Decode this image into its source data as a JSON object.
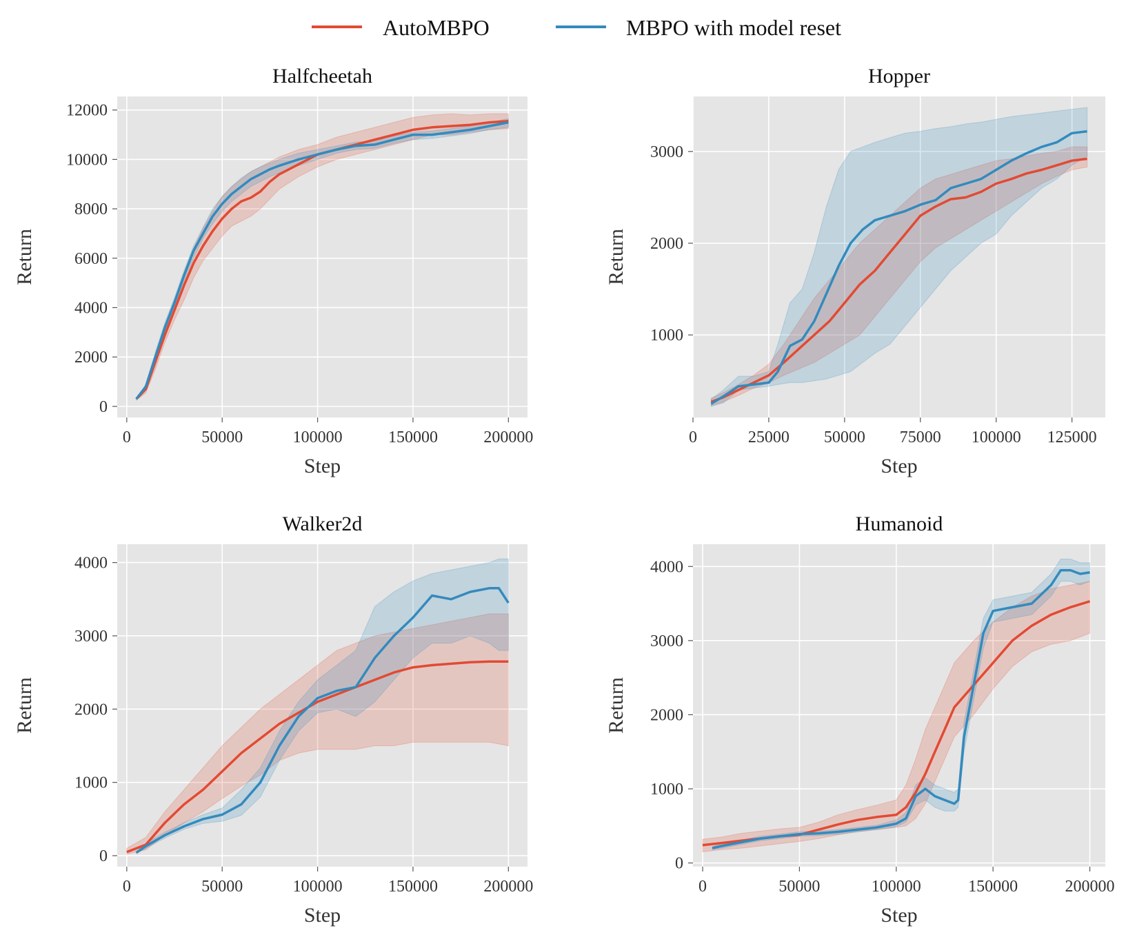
{
  "legend": {
    "placement": "top-center",
    "items": [
      {
        "label": "AutoMBPO",
        "color": "#E24A33"
      },
      {
        "label": "MBPO with model reset",
        "color": "#348ABD"
      }
    ]
  },
  "chart_data": [
    {
      "type": "line",
      "title": "Halfcheetah",
      "xlabel": "Step",
      "ylabel": "Return",
      "xlim": [
        -5000,
        210000
      ],
      "ylim": [
        -450,
        12550
      ],
      "xticks": [
        0,
        50000,
        100000,
        150000,
        200000
      ],
      "yticks": [
        0,
        2000,
        4000,
        6000,
        8000,
        10000,
        12000
      ],
      "grid": true,
      "series": [
        {
          "name": "AutoMBPO",
          "x": [
            5000,
            10000,
            15000,
            20000,
            25000,
            30000,
            35000,
            40000,
            45000,
            50000,
            55000,
            60000,
            65000,
            70000,
            75000,
            80000,
            90000,
            100000,
            110000,
            120000,
            130000,
            140000,
            150000,
            160000,
            170000,
            180000,
            190000,
            200000
          ],
          "y": [
            300,
            700,
            1800,
            2900,
            3900,
            4900,
            5800,
            6500,
            7100,
            7600,
            8000,
            8300,
            8450,
            8700,
            9100,
            9400,
            9800,
            10200,
            10400,
            10600,
            10800,
            11000,
            11200,
            11300,
            11350,
            11400,
            11500,
            11550
          ],
          "lower": [
            250,
            550,
            1500,
            2600,
            3500,
            4300,
            5200,
            5900,
            6400,
            6900,
            7300,
            7500,
            7700,
            8000,
            8400,
            8800,
            9300,
            9700,
            10000,
            10200,
            10400,
            10600,
            10800,
            11000,
            11000,
            11100,
            11200,
            11250
          ],
          "upper": [
            350,
            850,
            2000,
            3200,
            4300,
            5400,
            6400,
            7200,
            7900,
            8500,
            8900,
            9200,
            9500,
            9700,
            9900,
            10100,
            10400,
            10600,
            10900,
            11100,
            11300,
            11500,
            11700,
            11800,
            11850,
            11800,
            11850,
            11850
          ]
        },
        {
          "name": "MBPO with model reset",
          "x": [
            5000,
            10000,
            15000,
            20000,
            25000,
            30000,
            35000,
            40000,
            45000,
            50000,
            55000,
            60000,
            65000,
            70000,
            75000,
            80000,
            90000,
            100000,
            110000,
            120000,
            130000,
            140000,
            150000,
            160000,
            170000,
            180000,
            190000,
            200000
          ],
          "y": [
            300,
            800,
            2000,
            3200,
            4200,
            5300,
            6300,
            7000,
            7700,
            8200,
            8600,
            8900,
            9200,
            9400,
            9600,
            9750,
            10000,
            10200,
            10400,
            10550,
            10600,
            10800,
            11000,
            11000,
            11100,
            11200,
            11350,
            11500
          ],
          "lower": [
            280,
            700,
            1800,
            3000,
            4000,
            5100,
            6000,
            6800,
            7400,
            7900,
            8300,
            8600,
            8900,
            9100,
            9300,
            9450,
            9750,
            10000,
            10250,
            10400,
            10450,
            10650,
            10800,
            10850,
            10950,
            11050,
            11200,
            11300
          ],
          "upper": [
            320,
            900,
            2200,
            3400,
            4400,
            5500,
            6500,
            7250,
            8000,
            8500,
            8900,
            9250,
            9500,
            9700,
            9850,
            10000,
            10250,
            10400,
            10550,
            10700,
            10750,
            10950,
            11100,
            11150,
            11250,
            11350,
            11500,
            11650
          ]
        }
      ]
    },
    {
      "type": "line",
      "title": "Hopper",
      "xlabel": "Step",
      "ylabel": "Return",
      "xlim": [
        0,
        136000
      ],
      "ylim": [
        100,
        3600
      ],
      "xticks": [
        0,
        25000,
        50000,
        75000,
        100000,
        125000
      ],
      "yticks": [
        1000,
        2000,
        3000
      ],
      "grid": true,
      "series": [
        {
          "name": "AutoMBPO",
          "x": [
            6000,
            10000,
            15000,
            20000,
            25000,
            30000,
            35000,
            40000,
            45000,
            50000,
            55000,
            60000,
            65000,
            70000,
            75000,
            80000,
            85000,
            90000,
            95000,
            100000,
            105000,
            110000,
            115000,
            120000,
            125000,
            130000
          ],
          "y": [
            270,
            320,
            400,
            480,
            560,
            700,
            850,
            1000,
            1150,
            1350,
            1550,
            1700,
            1900,
            2100,
            2300,
            2400,
            2480,
            2500,
            2560,
            2650,
            2700,
            2760,
            2800,
            2850,
            2900,
            2920
          ],
          "lower": [
            230,
            270,
            340,
            420,
            480,
            560,
            630,
            700,
            800,
            900,
            1000,
            1200,
            1400,
            1600,
            1800,
            1950,
            2050,
            2150,
            2250,
            2350,
            2450,
            2550,
            2650,
            2730,
            2800,
            2830
          ],
          "upper": [
            310,
            370,
            460,
            560,
            680,
            900,
            1150,
            1400,
            1600,
            1800,
            2000,
            2150,
            2300,
            2450,
            2600,
            2700,
            2750,
            2800,
            2850,
            2900,
            2920,
            2950,
            2980,
            3000,
            3050,
            3050
          ]
        },
        {
          "name": "MBPO with model reset",
          "x": [
            6000,
            10000,
            15000,
            20000,
            25000,
            28000,
            32000,
            36000,
            40000,
            44000,
            48000,
            52000,
            56000,
            60000,
            65000,
            70000,
            75000,
            80000,
            85000,
            90000,
            95000,
            100000,
            105000,
            110000,
            115000,
            120000,
            125000,
            130000
          ],
          "y": [
            250,
            330,
            440,
            460,
            480,
            600,
            880,
            950,
            1150,
            1450,
            1750,
            2000,
            2150,
            2250,
            2300,
            2350,
            2420,
            2470,
            2600,
            2650,
            2700,
            2800,
            2900,
            2980,
            3050,
            3100,
            3200,
            3220
          ],
          "lower": [
            220,
            260,
            400,
            420,
            440,
            460,
            480,
            480,
            500,
            520,
            560,
            600,
            700,
            800,
            900,
            1100,
            1300,
            1500,
            1700,
            1850,
            2000,
            2100,
            2300,
            2450,
            2600,
            2700,
            2850,
            2950
          ],
          "upper": [
            300,
            400,
            550,
            550,
            600,
            900,
            1350,
            1500,
            1900,
            2400,
            2800,
            3000,
            3050,
            3100,
            3150,
            3200,
            3220,
            3250,
            3270,
            3300,
            3320,
            3350,
            3380,
            3400,
            3420,
            3440,
            3460,
            3480
          ]
        }
      ]
    },
    {
      "type": "line",
      "title": "Walker2d",
      "xlabel": "Step",
      "ylabel": "Return",
      "xlim": [
        -5000,
        210000
      ],
      "ylim": [
        -150,
        4250
      ],
      "xticks": [
        0,
        50000,
        100000,
        150000,
        200000
      ],
      "yticks": [
        0,
        1000,
        2000,
        3000,
        4000
      ],
      "grid": true,
      "series": [
        {
          "name": "AutoMBPO",
          "x": [
            0,
            10000,
            20000,
            30000,
            40000,
            50000,
            60000,
            70000,
            80000,
            90000,
            100000,
            110000,
            120000,
            130000,
            140000,
            150000,
            160000,
            170000,
            180000,
            190000,
            200000
          ],
          "y": [
            50,
            150,
            450,
            700,
            900,
            1150,
            1400,
            1600,
            1800,
            1950,
            2100,
            2200,
            2300,
            2400,
            2500,
            2570,
            2600,
            2620,
            2640,
            2650,
            2650
          ],
          "lower": [
            20,
            80,
            280,
            450,
            600,
            780,
            950,
            1100,
            1300,
            1400,
            1450,
            1450,
            1450,
            1500,
            1500,
            1550,
            1550,
            1550,
            1550,
            1550,
            1500
          ],
          "upper": [
            100,
            250,
            600,
            900,
            1200,
            1500,
            1750,
            2000,
            2200,
            2400,
            2600,
            2800,
            2900,
            3000,
            3050,
            3100,
            3150,
            3200,
            3250,
            3300,
            3300
          ]
        },
        {
          "name": "MBPO with model reset",
          "x": [
            5000,
            10000,
            20000,
            30000,
            40000,
            50000,
            60000,
            70000,
            80000,
            90000,
            100000,
            110000,
            120000,
            130000,
            140000,
            150000,
            160000,
            170000,
            180000,
            190000,
            195000,
            200000
          ],
          "y": [
            40,
            130,
            280,
            400,
            500,
            560,
            700,
            1000,
            1500,
            1900,
            2150,
            2250,
            2300,
            2700,
            3000,
            3250,
            3550,
            3500,
            3600,
            3650,
            3650,
            3450
          ],
          "lower": [
            30,
            100,
            240,
            360,
            440,
            470,
            550,
            800,
            1300,
            1700,
            1950,
            2000,
            1900,
            2100,
            2400,
            2700,
            2900,
            2900,
            3000,
            2900,
            2800,
            2800
          ],
          "upper": [
            60,
            170,
            320,
            450,
            560,
            650,
            900,
            1200,
            1700,
            2100,
            2400,
            2600,
            2800,
            3400,
            3600,
            3750,
            3850,
            3900,
            3950,
            4000,
            4050,
            4050
          ]
        }
      ]
    },
    {
      "type": "line",
      "title": "Humanoid",
      "xlabel": "Step",
      "ylabel": "Return",
      "xlim": [
        -5000,
        208000
      ],
      "ylim": [
        -50,
        4300
      ],
      "xticks": [
        0,
        50000,
        100000,
        150000,
        200000
      ],
      "yticks": [
        0,
        1000,
        2000,
        3000,
        4000
      ],
      "grid": true,
      "series": [
        {
          "name": "AutoMBPO",
          "x": [
            0,
            10000,
            20000,
            30000,
            40000,
            50000,
            60000,
            70000,
            80000,
            90000,
            100000,
            105000,
            110000,
            115000,
            120000,
            125000,
            130000,
            140000,
            150000,
            160000,
            170000,
            180000,
            190000,
            200000
          ],
          "y": [
            240,
            270,
            300,
            330,
            360,
            380,
            450,
            520,
            580,
            620,
            650,
            750,
            950,
            1200,
            1500,
            1800,
            2100,
            2400,
            2700,
            3000,
            3200,
            3350,
            3450,
            3530
          ],
          "lower": [
            150,
            180,
            200,
            230,
            260,
            290,
            330,
            380,
            420,
            450,
            480,
            500,
            600,
            800,
            1100,
            1400,
            1700,
            2000,
            2350,
            2650,
            2850,
            2950,
            3000,
            3100
          ],
          "upper": [
            320,
            350,
            400,
            430,
            460,
            480,
            550,
            650,
            720,
            780,
            850,
            1050,
            1400,
            1800,
            2100,
            2400,
            2700,
            3000,
            3250,
            3450,
            3600,
            3700,
            3750,
            3800
          ]
        },
        {
          "name": "MBPO with model reset",
          "x": [
            5000,
            10000,
            20000,
            30000,
            40000,
            50000,
            60000,
            70000,
            80000,
            90000,
            100000,
            105000,
            110000,
            115000,
            120000,
            125000,
            130000,
            132000,
            135000,
            140000,
            145000,
            150000,
            160000,
            170000,
            180000,
            185000,
            190000,
            195000,
            200000
          ],
          "y": [
            200,
            230,
            280,
            330,
            360,
            390,
            400,
            420,
            450,
            480,
            530,
            600,
            900,
            1000,
            900,
            850,
            800,
            850,
            1700,
            2400,
            3100,
            3400,
            3450,
            3500,
            3750,
            3950,
            3950,
            3900,
            3920
          ],
          "lower": [
            180,
            200,
            250,
            300,
            330,
            360,
            370,
            390,
            420,
            450,
            490,
            550,
            780,
            850,
            750,
            700,
            700,
            750,
            1500,
            2200,
            2900,
            3250,
            3300,
            3350,
            3600,
            3800,
            3800,
            3750,
            3800
          ],
          "upper": [
            220,
            260,
            310,
            360,
            390,
            420,
            430,
            450,
            480,
            510,
            580,
            680,
            1050,
            1150,
            1050,
            1000,
            950,
            1000,
            1900,
            2600,
            3300,
            3550,
            3600,
            3650,
            3900,
            4100,
            4100,
            4050,
            4050
          ]
        }
      ]
    }
  ]
}
